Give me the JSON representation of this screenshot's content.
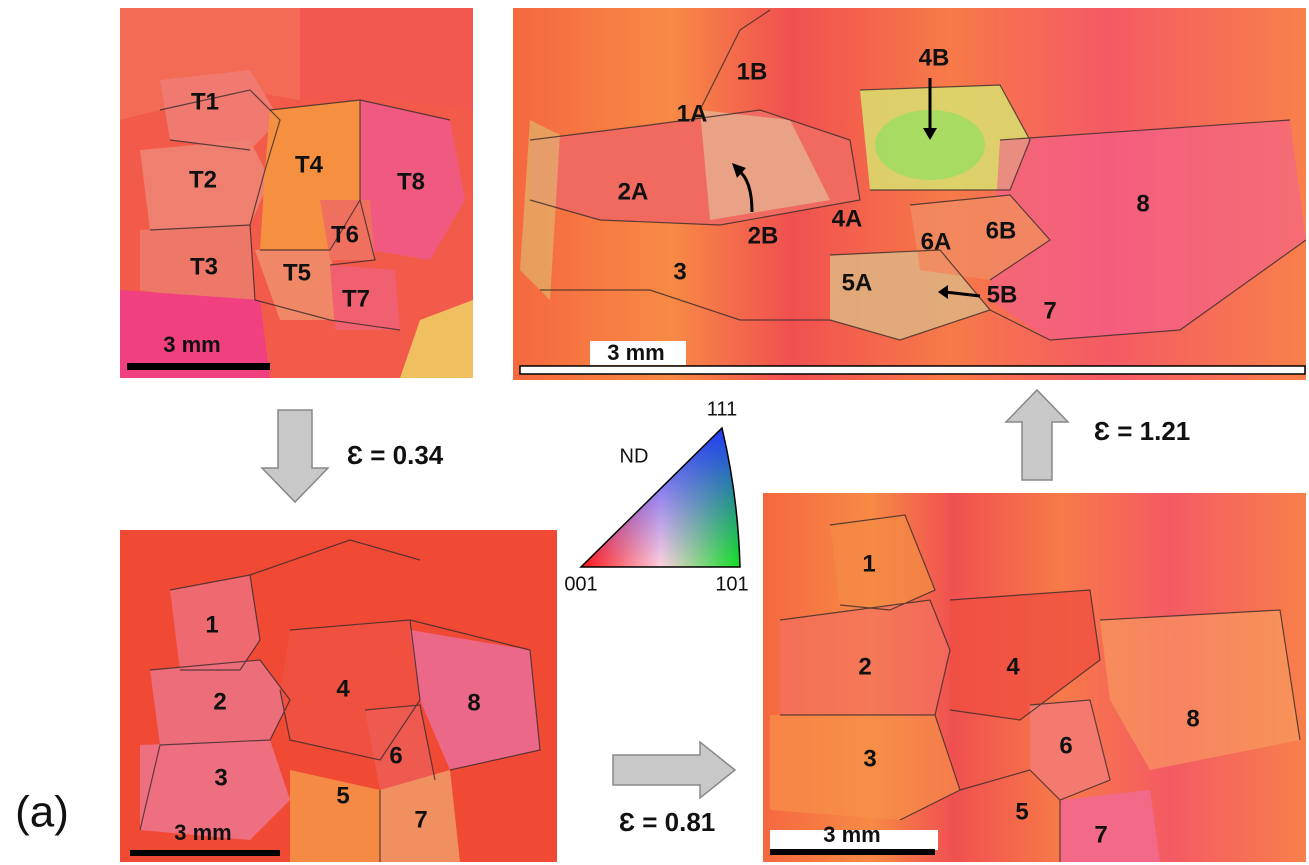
{
  "panel_label": "(a)",
  "initial": {
    "labels": [
      "T1",
      "T2",
      "T3",
      "T4",
      "T5",
      "T6",
      "T7",
      "T8"
    ],
    "scale_bar": "3 mm"
  },
  "strain_034": {
    "strain": "Ɛ = 0.34",
    "labels": [
      "1",
      "2",
      "3",
      "4",
      "5",
      "6",
      "7",
      "8"
    ],
    "scale_bar": "3 mm"
  },
  "strain_081": {
    "strain": "Ɛ = 0.81",
    "labels": [
      "1",
      "2",
      "3",
      "4",
      "5",
      "6",
      "7",
      "8"
    ],
    "scale_bar": "3 mm"
  },
  "strain_121": {
    "strain": "Ɛ = 1.21",
    "labels": [
      "1B",
      "1A",
      "4B",
      "2A",
      "2B",
      "4A",
      "6A",
      "6B",
      "3",
      "5A",
      "5B",
      "7",
      "8"
    ],
    "scale_bar": "3 mm"
  },
  "legend": {
    "axis": "ND",
    "corner_top": "111",
    "corner_left": "001",
    "corner_right": "101"
  }
}
